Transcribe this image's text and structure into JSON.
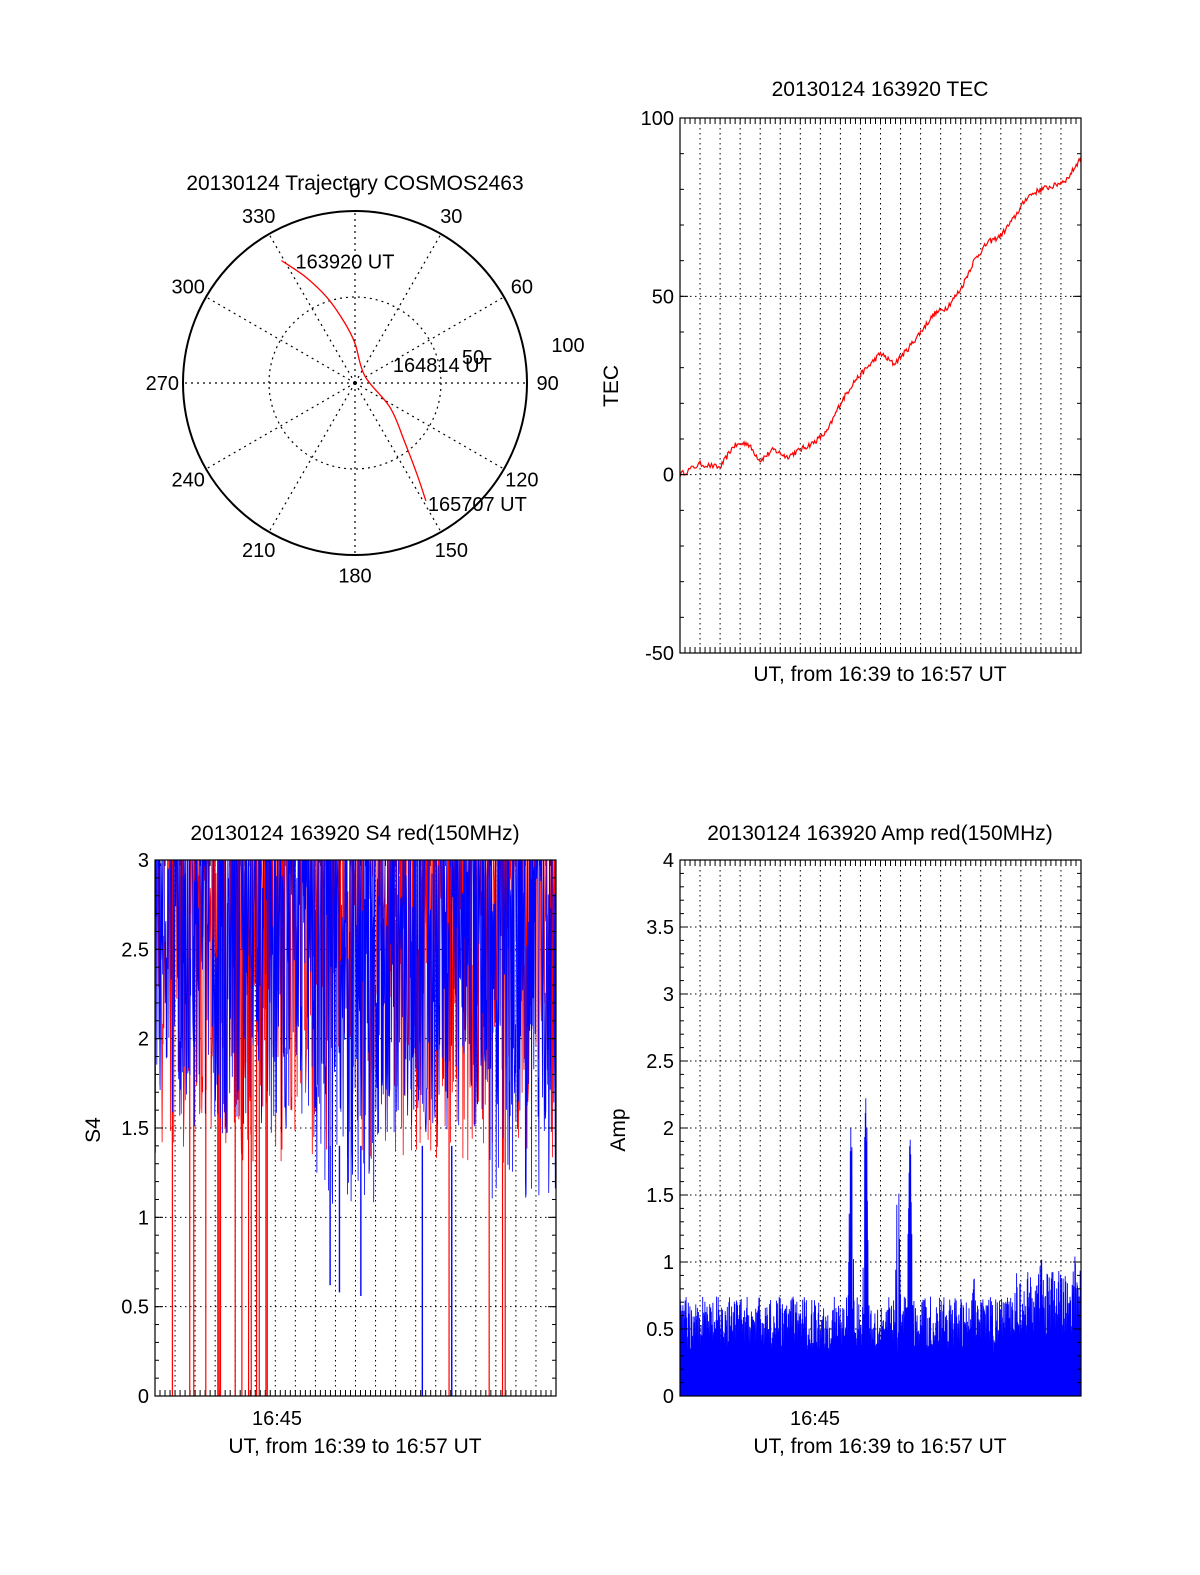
{
  "colors": {
    "red": "#ff0000",
    "blue": "#0000ff",
    "axis": "#000000",
    "grid": "#000000"
  },
  "chart_data": [
    {
      "id": "trajectory",
      "type": "polar",
      "title": "20130124 Trajectory COSMOS2463",
      "angle_labels": [
        "0",
        "30",
        "60",
        "90",
        "120",
        "150",
        "180",
        "210",
        "240",
        "270",
        "300",
        "330"
      ],
      "radial_labels": [
        "50",
        "100"
      ],
      "grid": true,
      "trajectory": {
        "points": [
          {
            "az": 329,
            "r": 83
          },
          {
            "az": 335,
            "r": 68
          },
          {
            "az": 342,
            "r": 52
          },
          {
            "az": 350,
            "r": 36
          },
          {
            "az": 0,
            "r": 23
          },
          {
            "az": 55,
            "r": 7
          },
          {
            "az": 125,
            "r": 25
          },
          {
            "az": 140,
            "r": 45
          },
          {
            "az": 146,
            "r": 65
          },
          {
            "az": 149,
            "r": 80
          }
        ],
        "labels": [
          {
            "text": "163920 UT",
            "az": 329,
            "r": 83
          },
          {
            "text": "164814 UT",
            "az": 55,
            "r": 7
          },
          {
            "text": "165707 UT",
            "az": 149,
            "r": 80
          }
        ]
      }
    },
    {
      "id": "tec",
      "type": "line",
      "title": "20130124 163920 TEC",
      "xlabel": "UT, from 16:39 to 16:57 UT",
      "ylabel": "TEC",
      "xlim": [
        16.65,
        16.95
      ],
      "ylim": [
        -50,
        100
      ],
      "yticks": [
        "100",
        "50",
        "0",
        "-50"
      ],
      "grid": true,
      "series": [
        {
          "color": "red",
          "x": [
            16.65,
            16.665,
            16.68,
            16.69,
            16.7,
            16.71,
            16.72,
            16.73,
            16.74,
            16.75,
            16.76,
            16.77,
            16.78,
            16.79,
            16.8,
            16.81,
            16.82,
            16.83,
            16.84,
            16.85,
            16.86,
            16.87,
            16.88,
            16.89,
            16.9,
            16.91,
            16.92,
            16.93,
            16.94,
            16.95
          ],
          "y": [
            0,
            3,
            2,
            8,
            9,
            4,
            7,
            5,
            7,
            9,
            12,
            20,
            26,
            30,
            34,
            31,
            35,
            40,
            45,
            47,
            52,
            60,
            65,
            67,
            72,
            78,
            80,
            81,
            83,
            89
          ]
        }
      ]
    },
    {
      "id": "s4",
      "type": "line",
      "title": "20130124 163920 S4 red(150MHz)",
      "xlabel": "UT, from 16:39 to 16:57 UT",
      "ylabel": "S4",
      "xlim": [
        16.65,
        16.95
      ],
      "ylim": [
        0,
        3
      ],
      "yticks": [
        "3",
        "2.5",
        "2",
        "1.5",
        "1",
        "0.5",
        "0"
      ],
      "xtick_label": "16:45",
      "grid": true,
      "series_colors": [
        "red",
        "blue"
      ],
      "blue_dips": [
        {
          "x": 16.781,
          "y": 0.62
        },
        {
          "x": 16.788,
          "y": 0.58
        },
        {
          "x": 16.804,
          "y": 0.56
        },
        {
          "x": 16.85,
          "y": 0
        },
        {
          "x": 16.872,
          "y": 0
        }
      ],
      "red_spikes_to_zero": [
        16.663,
        16.676,
        16.679,
        16.688,
        16.697,
        16.698,
        16.699,
        16.71,
        16.715,
        16.72,
        16.722,
        16.726,
        16.728,
        16.733,
        16.734,
        16.87,
        16.9,
        16.91,
        16.912
      ]
    },
    {
      "id": "amp",
      "type": "line",
      "title": "20130124 163920 Amp red(150MHz)",
      "xlabel": "UT, from 16:39 to 16:57 UT",
      "ylabel": "Amp",
      "xlim": [
        16.65,
        16.95
      ],
      "ylim": [
        0,
        4
      ],
      "yticks": [
        "4",
        "3.5",
        "3",
        "2.5",
        "2",
        "1.5",
        "1",
        "0.5",
        "0"
      ],
      "xtick_label": "16:45",
      "grid": true,
      "series_colors": [
        "blue"
      ],
      "baseline_level": 0.55,
      "peaks": [
        {
          "x": 16.778,
          "y": 2.15
        },
        {
          "x": 16.789,
          "y": 2.3
        },
        {
          "x": 16.813,
          "y": 1.78
        },
        {
          "x": 16.822,
          "y": 1.95
        },
        {
          "x": 16.87,
          "y": 1.0
        },
        {
          "x": 16.92,
          "y": 1.12
        },
        {
          "x": 16.945,
          "y": 1.2
        }
      ]
    }
  ]
}
